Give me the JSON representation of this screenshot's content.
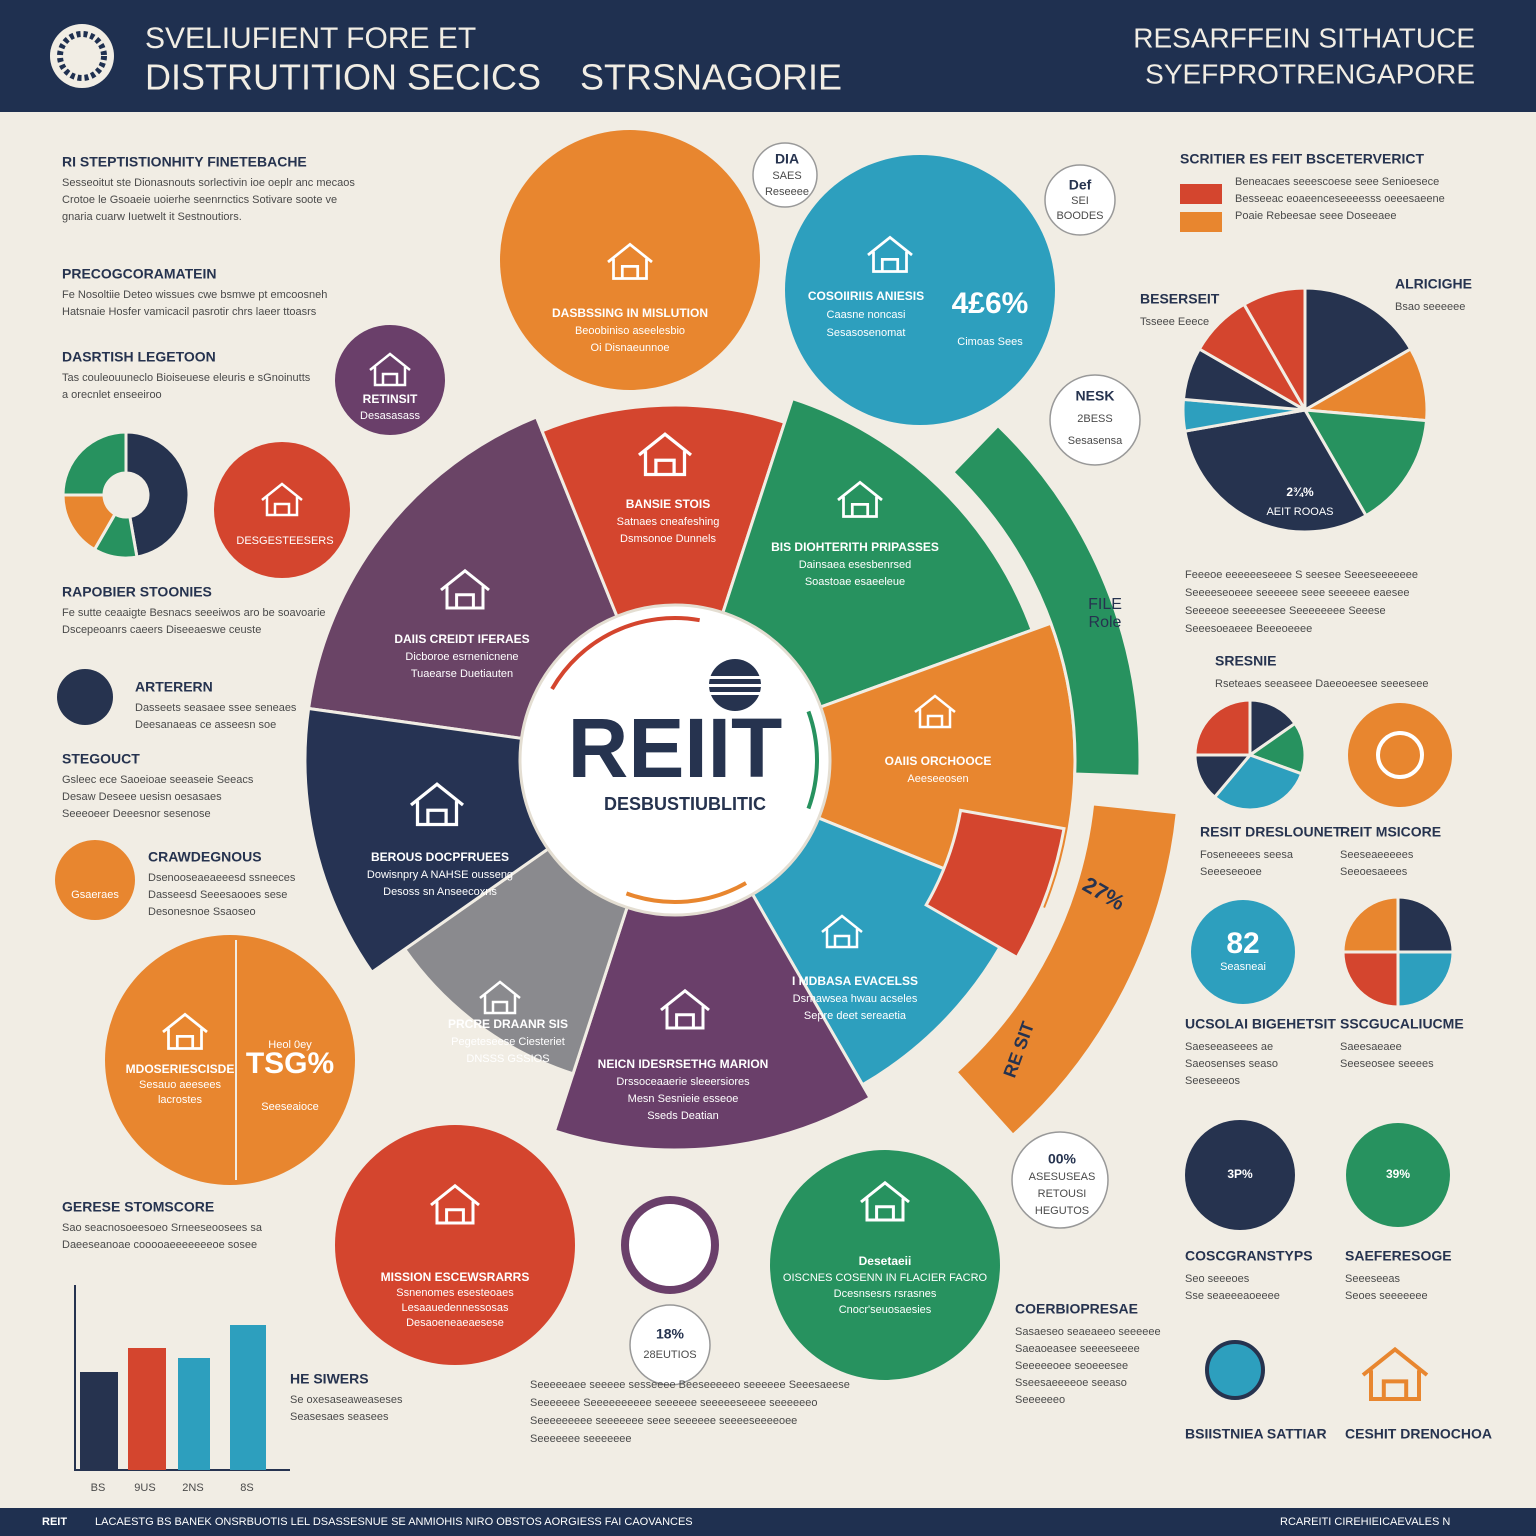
{
  "header": {
    "title_line1": "SVELIUFIENT FORE ET",
    "title_line2": "DISTRUTITION SECICS",
    "title_line2_tail": "STRSNAGORIE",
    "right_line1": "RESARFFEIN SITHATUCE",
    "right_line2": "SYEFPROTRENGAPORE"
  },
  "center": {
    "title": "REIIT",
    "subtitle": "DESBUSTIUBLITIC"
  },
  "segments": [
    {
      "title": "BANSIE STOIS",
      "lines": [
        "Satnaes cneafeshing",
        "Dsmsonoe Dunnels"
      ]
    },
    {
      "title": "BIS DIOHTERITH PRIPASSES",
      "lines": [
        "Dainsaea esesbenrsed",
        "Soastoae esaeeleue"
      ]
    },
    {
      "title": "DAIIS CREIDT IFERAES",
      "lines": [
        "Dicboroe esrnenicnene",
        "Tuaearse Duetiauten"
      ]
    },
    {
      "title": "OAIIS ORCHOOCE",
      "lines": [
        "Aeeseeosen"
      ]
    },
    {
      "title": "BEROUS DOCPFRUEES",
      "lines": [
        "Dowisnpry A NAHSE ousseng",
        "Desoss sn Anseecoxns"
      ]
    },
    {
      "title": "I MDBASA EVACELSS",
      "lines": [
        "Dsrnawsea hwau acseles",
        "Sepre deet sereaetia"
      ]
    },
    {
      "title": "PRCRE DRAANR SIS",
      "lines": [
        "Pegeteseese Ciesteriet",
        "DNSSS GSSIOS"
      ]
    },
    {
      "title": "NEICN IDESRSETHG MARION",
      "lines": [
        "Drssoceaaerie sleeersiores",
        "Mesn Sesnieie esseoe",
        "Sseds Deatian"
      ]
    }
  ],
  "callouts": {
    "orange_top": [
      "DASBSSING IN MISLUTION",
      "Beoobiniso aseelesbio",
      "Oi Disnaeunnoe"
    ],
    "teal_top": [
      "COSOIIRIIS ANIESIS",
      "Caasne noncasi",
      "Sesasosenomat"
    ],
    "teal_top_value": "4£6%",
    "teal_top_note": "Cimoas Sees",
    "sales_bubble": [
      "DIA",
      "SAES",
      "Reseeee"
    ],
    "small_bubble": [
      "Def",
      "SEI",
      "BOODES"
    ],
    "nesk_bubble": [
      "NESK",
      "2BESS",
      "Sesasensa"
    ],
    "pie_value": "2¾%",
    "pie_note": "AEIT ROOAS",
    "red_left": "DESGESTEESERS",
    "purple_small": [
      "RETINSIT",
      "Desasasass"
    ],
    "orange_big_value": "TSG%",
    "orange_big_top": "Heol 0ey",
    "orange_big_lines": [
      "MDOSERIESCISDE",
      "Sesauo aeesees",
      "lacrostes"
    ],
    "orange_big_note": "Seeseaioce",
    "red_bottom": [
      "MISSION ESCEWSRARRS",
      "Ssnenomes esesteoaes",
      "Lesaauedennessosas",
      "Desaoeneaeaesese"
    ],
    "green_bottom": [
      "Desetaeii",
      "OISCNES COSENN IN FLACIER FACRO",
      "Dcesnsesrs rsrasnes",
      "Cnocr'seuosaesies"
    ],
    "bubble_18": [
      "18%",
      "28EUTIOS"
    ],
    "bubble_00": [
      "00%",
      "ASESUSEAS",
      "RETOUSI",
      "HEGUTOS"
    ],
    "arc_value": "27%",
    "arc_label": "RE SIT",
    "green_arc": [
      "FILE",
      "Role"
    ],
    "teal_82": [
      "82",
      "Seasneai"
    ],
    "navy_3p": "3P%",
    "green_39": "39%",
    "orange_small": "Gsaeraes"
  },
  "left_sections": [
    {
      "heading": "RI STEPTISTIONHITY FINETEBACHE",
      "lines": [
        "Sesseoitut ste Dionasnouts sorlectivin ioe oeplr anc mecaos",
        "Crotoe le Gsoaeie uoierhe seenrnctics Sotivare soote ve",
        "gnaria cuarw Iuetwelt it Sestnoutiors."
      ]
    },
    {
      "heading": "PRECOGCORAMATEIN",
      "lines": [
        "Fe Nosoltiie Deteo wissues cwe bsmwe pt emcoosneh",
        "Hatsnaie Hosfer vamicacil pasrotir chrs laeer ttoasrs"
      ]
    },
    {
      "heading": "DASRTISH LEGETOON",
      "lines": [
        "Tas couleouuneclo Bioiseuese eleuris e sGnoinutts",
        "a orecnlet enseeiroo"
      ]
    },
    {
      "heading": "RAPOBIER STOONIES",
      "lines": [
        "Fe sutte ceaaigte Besnacs seeeiwos aro be soavoarie",
        "Dscepeoanrs caeers Diseeaeswe ceuste"
      ]
    },
    {
      "heading": "ARTERERN",
      "lines": [
        "Dasseets seasaee ssee seneaes",
        "Deesanaeas ce asseesn soe"
      ]
    },
    {
      "heading": "STEGOUCT",
      "lines": [
        "Gsleec ece Saoeioae seeaseie Seeacs",
        "Desaw Deseee uesisn oesasaes",
        "Seeeoeer Deeesnor sesenose"
      ]
    },
    {
      "heading": "CRAWDEGNOUS",
      "lines": [
        "Dsenooseaeaeeesd ssneeces",
        "Dasseesd Seeesaooes sese",
        "Desonesnoe Ssaoseo"
      ]
    },
    {
      "heading": "GERESE STOMSCORE",
      "lines": [
        "Sao seacnosoeesoeo Srneeseoosees sa",
        "Daeeseanoae cooooaeeeeeeeoe sosee"
      ]
    },
    {
      "heading": "HE SIWERS",
      "lines": [
        "Se oxesaseaweaseses",
        "Seasesaes seasees"
      ]
    }
  ],
  "bar_labels": [
    "BS",
    "9US",
    "2NS",
    "8S"
  ],
  "right_sections": [
    {
      "heading": "SCRITIER ES FEIT BSCETERVERICT",
      "lines": [
        "Beneacaes seeescoese seee Senioesece",
        "Besseeac eoaeenceseeeesss oeeesaeene",
        "Poaie Rebeesae seee Doseeaee"
      ]
    },
    {
      "heading": "BESERSEIT",
      "lines": [
        "Tsseee Eeece"
      ]
    },
    {
      "heading": "ALRICIGHE",
      "lines": [
        "Bsao seeeeee"
      ]
    },
    {
      "heading": "SRESNIE",
      "lines": [
        "Rseteaes seeaseee Daeeoeesee seeeseee"
      ]
    },
    {
      "heading": "RESIT DRESLOUNET",
      "lines": [
        "Foseneeees seesa",
        "Seeeseeoee"
      ]
    },
    {
      "heading": "REIT MSICORE",
      "lines": [
        "Seeseaeeeees",
        "Seeoesaeees"
      ]
    },
    {
      "heading": "UCSOLAI BIGEHETSIT",
      "lines": [
        "Saeseeaseees ae",
        "Saeosenses seaso",
        "Seeseeeos"
      ]
    },
    {
      "heading": "SSCGUCALIUCME",
      "lines": [
        "Saeesaeaee",
        "Seeseosee seeees"
      ]
    },
    {
      "heading": "COSCGRANSTYPS",
      "lines": [
        "Seo seeeoes",
        "Sse seaeeeaoeeee"
      ]
    },
    {
      "heading": "SAEFERESOGE",
      "lines": [
        "Seeeseeas",
        "Seoes seeeeeee"
      ]
    },
    {
      "heading": "COERBIOPRESAE",
      "lines": [
        "Sasaeseo seaeaeeo seeeeee",
        "Saeaoeasee seeeeseeee",
        "Seeeeeoee seoeeesee",
        "Sseesaeeeeoe seeaso",
        "Seeeeeeo"
      ]
    },
    {
      "heading": "BSIISTNIEA SATTIAR",
      "lines": []
    },
    {
      "heading": "CESHIT DRENOCHOA",
      "lines": []
    }
  ],
  "right_paragraph": [
    "Feeeoe eeeeeeseeee S seesee Seeeseeeeeee",
    "Seeeeseoeee seeeeee seee seeeeee eaesee",
    "Seeeeoe seeeeesee Seeeeeeee Seeese",
    "Seeesoeaeee Beeeoeeee"
  ],
  "bottom_paragraph": [
    "Seeeeeaee seeeee sesseeee Beeseeeeeo seeeeee Seeesaeese",
    "Seeeeeee Seeeeeeeeee seeeeee seeeeeseeee seeeeeeo",
    "Seeeeeeeee seeeeeee seee seeeeee seeeeseeeeoee",
    "Seeeeeee seeeeeee"
  ],
  "footer": {
    "logo": "REIT",
    "left": "LACAESTG BS BANEK ONSRBUOTIS LEL DSASSESNUE SE ANMIOHIS NIRO OBSTOS AORGIESS FAI CAOVANCES",
    "right": "RCAREITI CIREHIEICAEVALES N"
  }
}
